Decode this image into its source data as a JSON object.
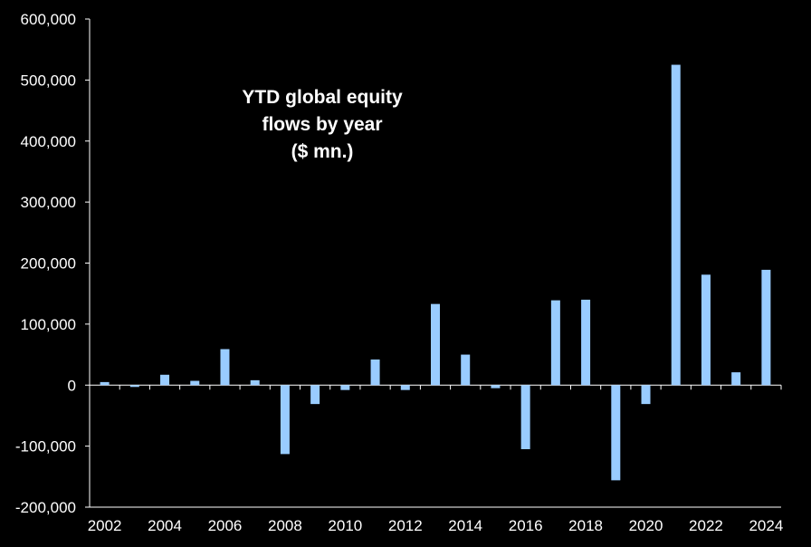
{
  "chart_data": {
    "type": "bar",
    "title_lines": [
      "YTD global equity",
      "flows by year",
      "($ mn.)"
    ],
    "xlabel": "",
    "ylabel": "",
    "categories": [
      "2002",
      "2003",
      "2004",
      "2005",
      "2006",
      "2007",
      "2008",
      "2009",
      "2010",
      "2011",
      "2012",
      "2013",
      "2014",
      "2015",
      "2016",
      "2017",
      "2018",
      "2019",
      "2020",
      "2021",
      "2022",
      "2023",
      "2024"
    ],
    "x_tick_labels": [
      "2002",
      "2004",
      "2006",
      "2008",
      "2010",
      "2012",
      "2014",
      "2016",
      "2018",
      "2020",
      "2022",
      "2024"
    ],
    "values": [
      5000,
      -3000,
      17000,
      7000,
      59000,
      8000,
      -113000,
      -31000,
      -8000,
      42000,
      -8000,
      133000,
      50000,
      -5000,
      -105000,
      139000,
      140000,
      -156000,
      -31000,
      525000,
      181000,
      21000,
      189000
    ],
    "ylim": [
      -200000,
      600000
    ],
    "y_ticks": [
      -200000,
      -100000,
      0,
      100000,
      200000,
      300000,
      400000,
      500000,
      600000
    ],
    "y_tick_labels": [
      "-200,000",
      "-100,000",
      "0",
      "100,000",
      "200,000",
      "300,000",
      "400,000",
      "500,000",
      "600,000"
    ],
    "grid": false,
    "legend": "none",
    "colors": {
      "background": "#000000",
      "bar": "#99ccff",
      "axis": "#ffffff",
      "text": "#ffffff"
    }
  }
}
